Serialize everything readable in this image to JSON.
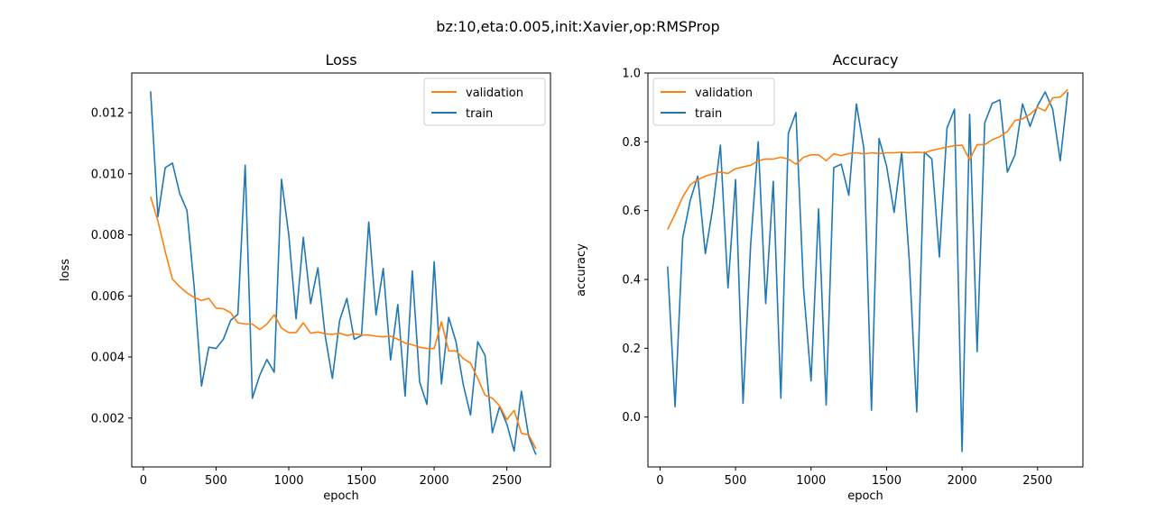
{
  "figure": {
    "suptitle": "bz:10,eta:0.005,init:Xavier,op:RMSProp",
    "colors": {
      "validation": "#ff7f0e",
      "train": "#1f77b4"
    }
  },
  "chart_data": [
    {
      "type": "line",
      "title": "Loss",
      "xlabel": "epoch",
      "ylabel": "loss",
      "xlim": [
        -80,
        2800
      ],
      "ylim": [
        0.0004,
        0.0133
      ],
      "xticks": [
        0,
        500,
        1000,
        1500,
        2000,
        2500
      ],
      "xtick_labels": [
        "0",
        "500",
        "1000",
        "1500",
        "2000",
        "2500"
      ],
      "yticks": [
        0.002,
        0.004,
        0.006,
        0.008,
        0.01,
        0.012
      ],
      "ytick_labels": [
        "0.002",
        "0.004",
        "0.006",
        "0.008",
        "0.010",
        "0.012"
      ],
      "grid": false,
      "legend": "top-right",
      "series": [
        {
          "name": "validation",
          "color": "#ff7f0e",
          "x": [
            50,
            100,
            150,
            200,
            250,
            300,
            350,
            400,
            450,
            500,
            550,
            600,
            650,
            700,
            750,
            800,
            850,
            900,
            950,
            1000,
            1050,
            1100,
            1150,
            1200,
            1250,
            1300,
            1350,
            1400,
            1450,
            1500,
            1550,
            1600,
            1650,
            1700,
            1750,
            1800,
            1850,
            1900,
            1950,
            2000,
            2050,
            2100,
            2150,
            2200,
            2250,
            2300,
            2350,
            2400,
            2450,
            2500,
            2550,
            2600,
            2650,
            2700
          ],
          "y": [
            0.00925,
            0.00845,
            0.00745,
            0.00655,
            0.0063,
            0.0061,
            0.00595,
            0.00585,
            0.00592,
            0.0056,
            0.00558,
            0.00545,
            0.00512,
            0.00508,
            0.00508,
            0.0049,
            0.00508,
            0.00538,
            0.00495,
            0.0048,
            0.0048,
            0.00512,
            0.00478,
            0.00482,
            0.00476,
            0.00474,
            0.00478,
            0.0047,
            0.00476,
            0.00472,
            0.00472,
            0.00468,
            0.00466,
            0.00468,
            0.00458,
            0.00446,
            0.0044,
            0.00432,
            0.00428,
            0.00428,
            0.00515,
            0.0042,
            0.0042,
            0.00395,
            0.0038,
            0.0033,
            0.00275,
            0.00265,
            0.0024,
            0.00195,
            0.00225,
            0.0015,
            0.00145,
            0.001
          ]
        },
        {
          "name": "train",
          "color": "#1f77b4",
          "x": [
            50,
            100,
            150,
            200,
            250,
            300,
            350,
            400,
            450,
            500,
            550,
            600,
            650,
            700,
            750,
            800,
            850,
            900,
            950,
            1000,
            1050,
            1100,
            1150,
            1200,
            1250,
            1300,
            1350,
            1400,
            1450,
            1500,
            1550,
            1600,
            1650,
            1700,
            1750,
            1800,
            1850,
            1900,
            1950,
            2000,
            2050,
            2100,
            2150,
            2200,
            2250,
            2300,
            2350,
            2400,
            2450,
            2500,
            2550,
            2600,
            2650,
            2700
          ],
          "y": [
            0.0127,
            0.0086,
            0.0102,
            0.01035,
            0.00935,
            0.0088,
            0.00625,
            0.00305,
            0.00432,
            0.00428,
            0.00458,
            0.0052,
            0.0054,
            0.01028,
            0.00265,
            0.0034,
            0.00392,
            0.0035,
            0.00982,
            0.008,
            0.00525,
            0.00792,
            0.00575,
            0.00692,
            0.0047,
            0.0033,
            0.0052,
            0.00592,
            0.00458,
            0.0047,
            0.00842,
            0.00538,
            0.0069,
            0.0039,
            0.00572,
            0.00272,
            0.00682,
            0.00318,
            0.00245,
            0.00712,
            0.00312,
            0.0053,
            0.0045,
            0.0031,
            0.0021,
            0.0045,
            0.00405,
            0.00152,
            0.00238,
            0.0018,
            0.00092,
            0.00288,
            0.0014,
            0.0008
          ]
        }
      ]
    },
    {
      "type": "line",
      "title": "Accuracy",
      "xlabel": "epoch",
      "ylabel": "accuracy",
      "xlim": [
        -80,
        2800
      ],
      "ylim": [
        -0.145,
        1.0
      ],
      "xticks": [
        0,
        500,
        1000,
        1500,
        2000,
        2500
      ],
      "xtick_labels": [
        "0",
        "500",
        "1000",
        "1500",
        "2000",
        "2500"
      ],
      "yticks": [
        0.0,
        0.2,
        0.4,
        0.6,
        0.8,
        1.0
      ],
      "ytick_labels": [
        "0.0",
        "0.2",
        "0.4",
        "0.6",
        "0.8",
        "1.0"
      ],
      "grid": false,
      "legend": "top-left",
      "series": [
        {
          "name": "validation",
          "color": "#ff7f0e",
          "x": [
            50,
            100,
            150,
            200,
            250,
            300,
            350,
            400,
            450,
            500,
            550,
            600,
            650,
            700,
            750,
            800,
            850,
            900,
            950,
            1000,
            1050,
            1100,
            1150,
            1200,
            1250,
            1300,
            1350,
            1400,
            1450,
            1500,
            1550,
            1600,
            1650,
            1700,
            1750,
            1800,
            1850,
            1900,
            1950,
            2000,
            2050,
            2100,
            2150,
            2200,
            2250,
            2300,
            2350,
            2400,
            2450,
            2500,
            2550,
            2600,
            2650,
            2700
          ],
          "y": [
            0.545,
            0.59,
            0.64,
            0.675,
            0.69,
            0.7,
            0.707,
            0.712,
            0.708,
            0.722,
            0.727,
            0.732,
            0.745,
            0.75,
            0.75,
            0.755,
            0.75,
            0.735,
            0.755,
            0.762,
            0.762,
            0.745,
            0.765,
            0.76,
            0.766,
            0.768,
            0.765,
            0.768,
            0.766,
            0.768,
            0.768,
            0.77,
            0.768,
            0.77,
            0.768,
            0.775,
            0.78,
            0.785,
            0.789,
            0.79,
            0.748,
            0.792,
            0.792,
            0.806,
            0.815,
            0.83,
            0.862,
            0.867,
            0.88,
            0.9,
            0.89,
            0.928,
            0.93,
            0.952
          ]
        },
        {
          "name": "train",
          "color": "#1f77b4",
          "x": [
            50,
            100,
            150,
            200,
            250,
            300,
            350,
            400,
            450,
            500,
            550,
            600,
            650,
            700,
            750,
            800,
            850,
            900,
            950,
            1000,
            1050,
            1100,
            1150,
            1200,
            1250,
            1300,
            1350,
            1400,
            1450,
            1500,
            1550,
            1600,
            1650,
            1700,
            1750,
            1800,
            1850,
            1900,
            1950,
            2000,
            2050,
            2100,
            2150,
            2200,
            2250,
            2300,
            2350,
            2400,
            2450,
            2500,
            2550,
            2600,
            2650,
            2700
          ],
          "y": [
            0.438,
            0.03,
            0.52,
            0.63,
            0.7,
            0.475,
            0.61,
            0.79,
            0.375,
            0.69,
            0.04,
            0.5,
            0.8,
            0.33,
            0.685,
            0.055,
            0.825,
            0.885,
            0.375,
            0.105,
            0.605,
            0.035,
            0.725,
            0.735,
            0.645,
            0.91,
            0.78,
            0.02,
            0.81,
            0.73,
            0.595,
            0.77,
            0.46,
            0.015,
            0.77,
            0.75,
            0.465,
            0.84,
            0.895,
            -0.1,
            0.88,
            0.19,
            0.855,
            0.912,
            0.922,
            0.712,
            0.762,
            0.91,
            0.845,
            0.905,
            0.945,
            0.895,
            0.745,
            0.945
          ]
        }
      ]
    }
  ]
}
